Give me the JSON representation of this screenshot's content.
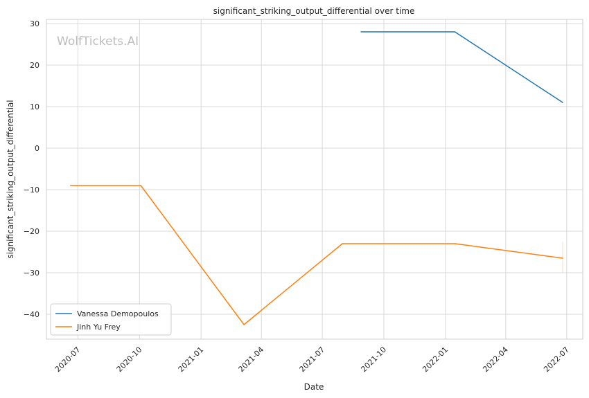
{
  "watermark": "WolfTickets.AI",
  "chart_data": {
    "type": "line",
    "title": "significant_striking_output_differential over time",
    "xlabel": "Date",
    "ylabel": "significant_striking_output_differential",
    "x_range": [
      "2020-05-15",
      "2022-07-25"
    ],
    "ylim": [
      -46,
      31
    ],
    "y_ticks": [
      30,
      20,
      10,
      0,
      -10,
      -20,
      -30,
      -40
    ],
    "x_ticks": [
      "2020-07",
      "2020-10",
      "2021-01",
      "2021-04",
      "2021-07",
      "2021-10",
      "2022-01",
      "2022-04",
      "2022-07"
    ],
    "grid": true,
    "legend_position": "lower-left",
    "series": [
      {
        "name": "Vanessa Demopoulos",
        "color": "#1f77b4",
        "points": [
          {
            "x": "2021-08-28",
            "y": 28
          },
          {
            "x": "2022-01-15",
            "y": 28
          },
          {
            "x": "2022-06-25",
            "y": 11
          }
        ]
      },
      {
        "name": "Jinh Yu Frey",
        "color": "#ff7f0e",
        "points": [
          {
            "x": "2020-06-20",
            "y": -9
          },
          {
            "x": "2020-10-03",
            "y": -9
          },
          {
            "x": "2021-03-06",
            "y": -42.5
          },
          {
            "x": "2021-07-31",
            "y": -23
          },
          {
            "x": "2022-01-15",
            "y": -23
          },
          {
            "x": "2022-06-25",
            "y": -26.5
          }
        ]
      }
    ]
  }
}
